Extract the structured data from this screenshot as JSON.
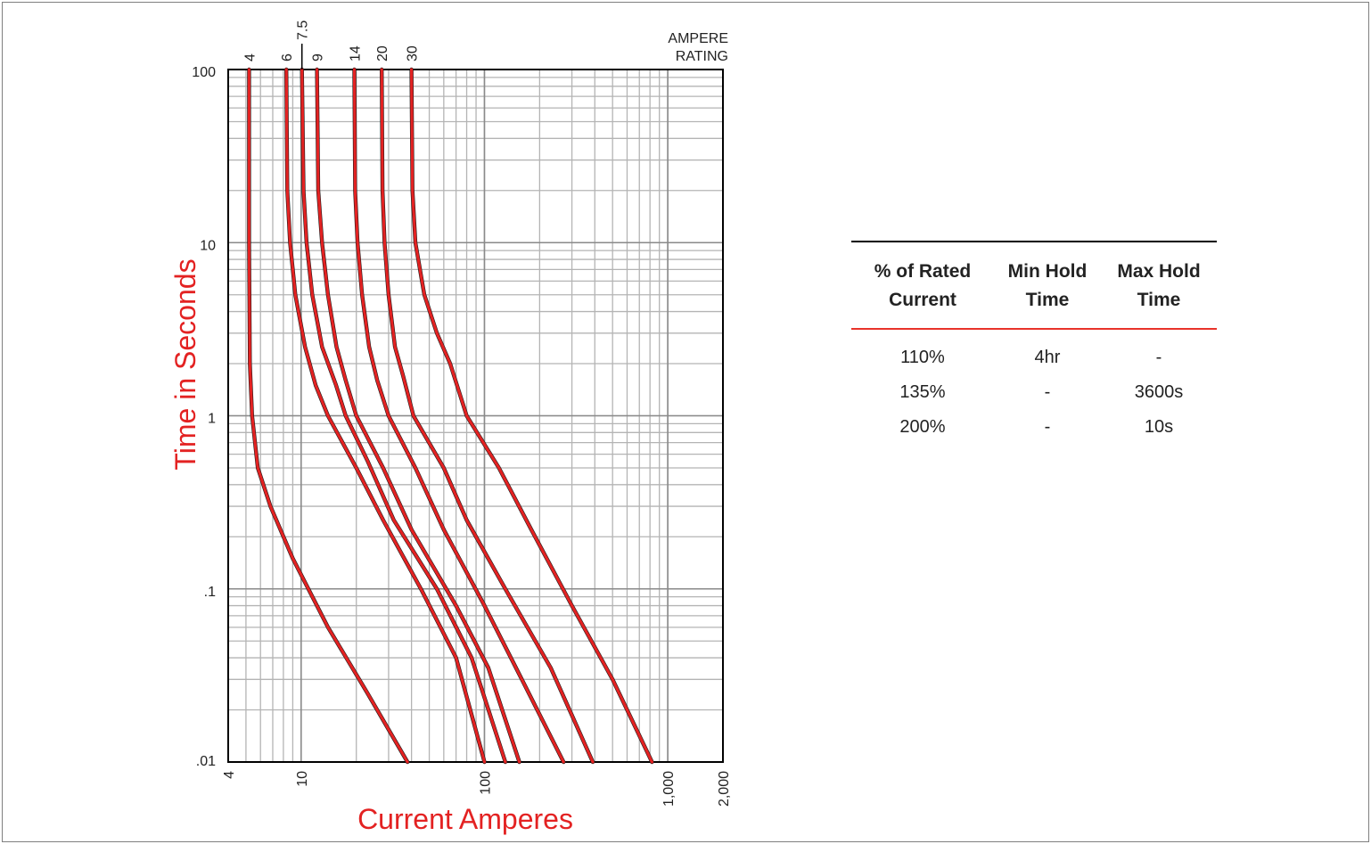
{
  "chart_data": {
    "type": "line",
    "title": "",
    "xlabel": "Current Amperes",
    "ylabel": "Time in Seconds",
    "xscale": "log",
    "yscale": "log",
    "xlim": [
      4,
      2000
    ],
    "ylim": [
      0.01,
      100
    ],
    "grid": true,
    "x_tick_labels": [
      "4",
      "10",
      "100",
      "1,000",
      "2,000"
    ],
    "x_tick_values": [
      4,
      10,
      100,
      1000,
      2000
    ],
    "y_tick_labels": [
      "100",
      "10",
      "1",
      ".1",
      ".01"
    ],
    "y_tick_values": [
      100,
      10,
      1,
      0.1,
      0.01
    ],
    "legend_title": [
      "AMPERE",
      "RATING"
    ],
    "line_color": "#e32222",
    "grid_color": "#b4b4b4",
    "label_color": "#e32222",
    "series": [
      {
        "name": "4",
        "points": [
          [
            5.2,
            100
          ],
          [
            5.2,
            50
          ],
          [
            5.2,
            10
          ],
          [
            5.25,
            2
          ],
          [
            5.4,
            1
          ],
          [
            5.8,
            0.5
          ],
          [
            6.8,
            0.3
          ],
          [
            9,
            0.15
          ],
          [
            14,
            0.06
          ],
          [
            23,
            0.025
          ],
          [
            38,
            0.01
          ]
        ]
      },
      {
        "name": "6",
        "points": [
          [
            8.3,
            100
          ],
          [
            8.4,
            20
          ],
          [
            8.7,
            10
          ],
          [
            9.3,
            5
          ],
          [
            10.5,
            2.5
          ],
          [
            12,
            1.5
          ],
          [
            14,
            1
          ],
          [
            20,
            0.5
          ],
          [
            28,
            0.25
          ],
          [
            45,
            0.1
          ],
          [
            70,
            0.04
          ],
          [
            100,
            0.01
          ]
        ]
      },
      {
        "name": "7.5",
        "points": [
          [
            10.1,
            100
          ],
          [
            10.3,
            20
          ],
          [
            10.7,
            10
          ],
          [
            11.5,
            5
          ],
          [
            13,
            2.5
          ],
          [
            15.5,
            1.5
          ],
          [
            17.5,
            1
          ],
          [
            23,
            0.55
          ],
          [
            32,
            0.25
          ],
          [
            55,
            0.1
          ],
          [
            85,
            0.04
          ],
          [
            130,
            0.01
          ]
        ]
      },
      {
        "name": "9",
        "points": [
          [
            12.2,
            100
          ],
          [
            12.4,
            20
          ],
          [
            13,
            10
          ],
          [
            14,
            5
          ],
          [
            15.6,
            2.5
          ],
          [
            17.5,
            1.6
          ],
          [
            20,
            1
          ],
          [
            28,
            0.5
          ],
          [
            40,
            0.22
          ],
          [
            70,
            0.08
          ],
          [
            105,
            0.035
          ],
          [
            155,
            0.01
          ]
        ]
      },
      {
        "name": "14",
        "points": [
          [
            19.5,
            100
          ],
          [
            19.7,
            20
          ],
          [
            20.3,
            10
          ],
          [
            21.5,
            5
          ],
          [
            23.5,
            2.5
          ],
          [
            26,
            1.6
          ],
          [
            30,
            1
          ],
          [
            42,
            0.5
          ],
          [
            60,
            0.22
          ],
          [
            100,
            0.08
          ],
          [
            160,
            0.03
          ],
          [
            270,
            0.01
          ]
        ]
      },
      {
        "name": "20",
        "points": [
          [
            27.5,
            100
          ],
          [
            27.8,
            20
          ],
          [
            28.5,
            10
          ],
          [
            30,
            5
          ],
          [
            32.5,
            2.5
          ],
          [
            36,
            1.7
          ],
          [
            41,
            1
          ],
          [
            60,
            0.5
          ],
          [
            80,
            0.25
          ],
          [
            130,
            0.1
          ],
          [
            230,
            0.035
          ],
          [
            390,
            0.01
          ]
        ]
      },
      {
        "name": "30",
        "points": [
          [
            40,
            100
          ],
          [
            40.5,
            20
          ],
          [
            42,
            10
          ],
          [
            47,
            5
          ],
          [
            55,
            3
          ],
          [
            65,
            2
          ],
          [
            80,
            1
          ],
          [
            120,
            0.5
          ],
          [
            180,
            0.22
          ],
          [
            300,
            0.08
          ],
          [
            500,
            0.03
          ],
          [
            820,
            0.01
          ]
        ]
      }
    ]
  },
  "table": {
    "headers": [
      [
        "% of Rated",
        "Current"
      ],
      [
        "Min Hold",
        "Time"
      ],
      [
        "Max Hold",
        "Time"
      ]
    ],
    "rows": [
      [
        "110%",
        "4hr",
        "-"
      ],
      [
        "135%",
        "-",
        "3600s"
      ],
      [
        "200%",
        "-",
        "10s"
      ]
    ],
    "rule_color": "#000000",
    "accent_rule_color": "#e8332a"
  }
}
